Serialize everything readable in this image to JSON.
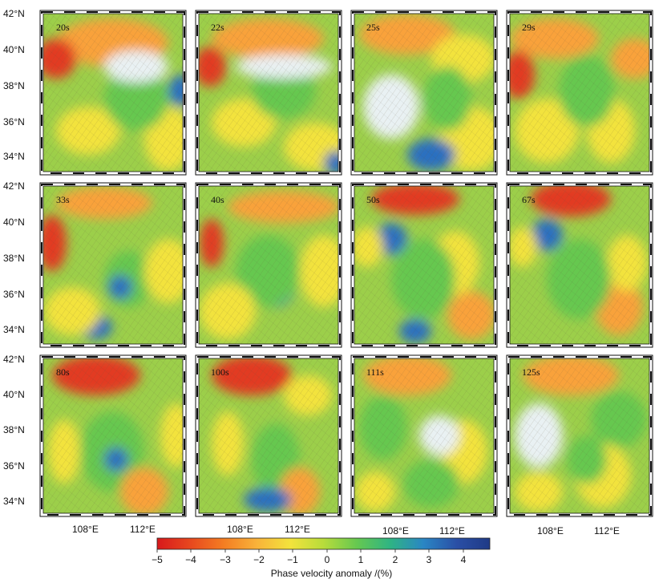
{
  "latitude_labels": [
    "42°N",
    "40°N",
    "38°N",
    "36°N",
    "34°N"
  ],
  "longitude_labels": [
    "108°E",
    "112°E"
  ],
  "panels": [
    {
      "period": "20s"
    },
    {
      "period": "22s"
    },
    {
      "period": "25s"
    },
    {
      "period": "29s"
    },
    {
      "period": "33s"
    },
    {
      "period": "40s"
    },
    {
      "period": "50s"
    },
    {
      "period": "67s"
    },
    {
      "period": "80s"
    },
    {
      "period": "100s"
    },
    {
      "period": "111s"
    },
    {
      "period": "125s"
    }
  ],
  "colorbar": {
    "title": "Phase velocity anomaly /(%)",
    "ticks": [
      "−5",
      "−4",
      "−3",
      "−2",
      "−1",
      "0",
      "1",
      "2",
      "3",
      "4"
    ],
    "min": -5,
    "max": 4.8,
    "colors": [
      "#d7191c",
      "#e8481e",
      "#f47d22",
      "#f9b33a",
      "#f3e33c",
      "#b8dc3b",
      "#66c850",
      "#2fb483",
      "#2a86c4",
      "#2a4fa6",
      "#1f3a86"
    ]
  },
  "colors": {
    "land_hatch": "#b9a57a",
    "low_velocity": "#d7191c",
    "high_velocity": "#2a4fa6",
    "neutral": "#e8eef0"
  }
}
